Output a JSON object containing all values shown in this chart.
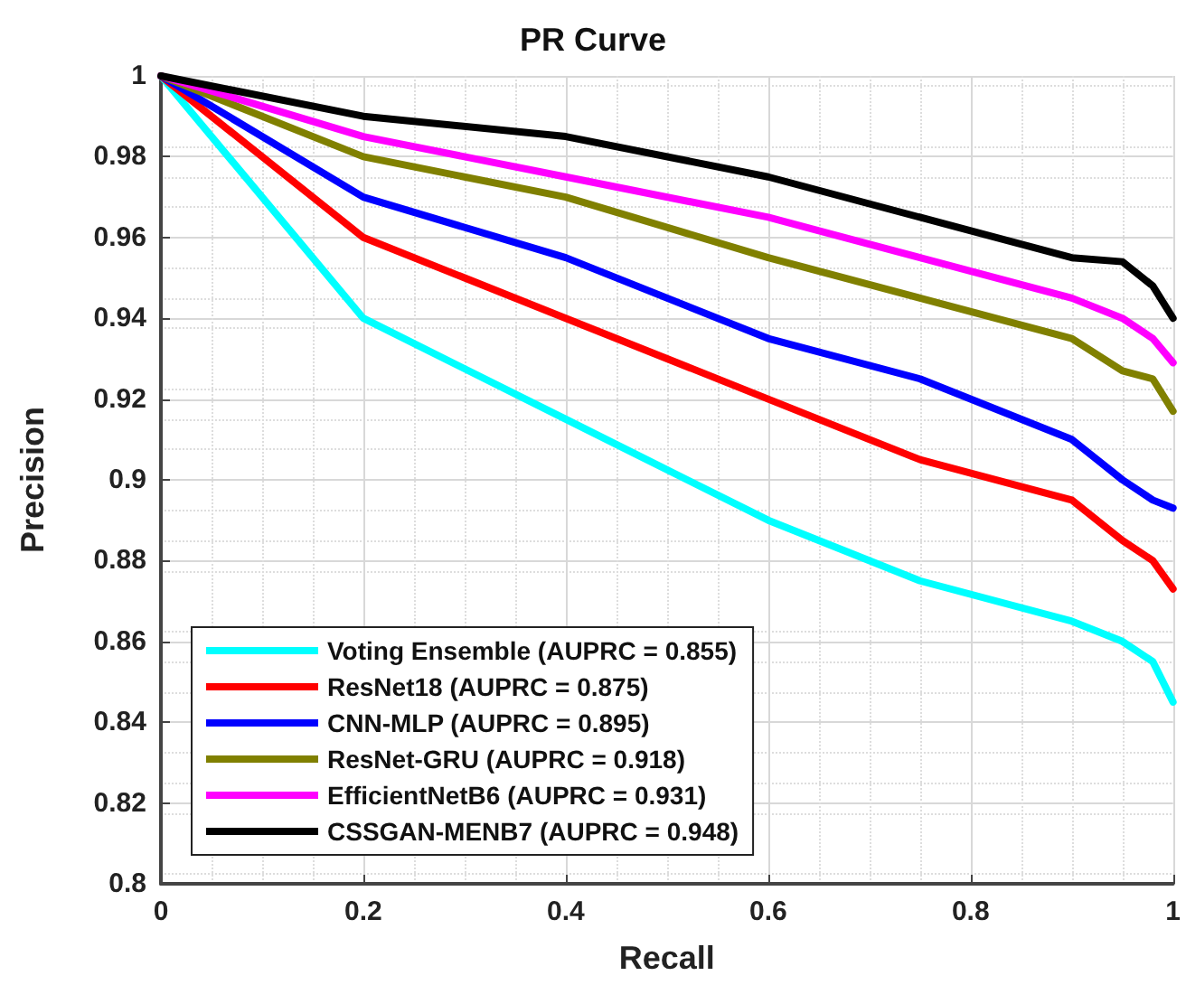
{
  "chart_data": {
    "type": "line",
    "title": "PR Curve",
    "xlabel": "Recall",
    "ylabel": "Precision",
    "xlim": [
      0,
      1
    ],
    "xticks": [
      0,
      0.2,
      0.4,
      0.6,
      0.8,
      1
    ],
    "ylim": [
      0.8,
      1
    ],
    "yticks": [
      0.8,
      0.82,
      0.84,
      0.86,
      0.88,
      0.9,
      0.92,
      0.94,
      0.96,
      0.98,
      1
    ],
    "grid": true,
    "legend": "bottom left",
    "marker": "none",
    "line_style": "solid",
    "x": [
      0,
      0.2,
      0.4,
      0.6,
      0.75,
      0.9,
      0.95,
      0.98,
      1
    ],
    "series": [
      {
        "name": "Voting Ensemble (AUPRC = 0.855)",
        "color": "#00ffff",
        "values": [
          1,
          0.94,
          0.915,
          0.89,
          0.875,
          0.865,
          0.86,
          0.855,
          0.845
        ]
      },
      {
        "name": "ResNet18 (AUPRC = 0.875)",
        "color": "#ff0000",
        "values": [
          1,
          0.96,
          0.94,
          0.92,
          0.905,
          0.895,
          0.885,
          0.88,
          0.873
        ]
      },
      {
        "name": "CNN-MLP (AUPRC = 0.895)",
        "color": "#0000ff",
        "values": [
          1,
          0.97,
          0.955,
          0.935,
          0.925,
          0.91,
          0.9,
          0.895,
          0.893
        ]
      },
      {
        "name": "ResNet-GRU (AUPRC = 0.918)",
        "color": "#808000",
        "values": [
          1,
          0.98,
          0.97,
          0.955,
          0.945,
          0.935,
          0.927,
          0.925,
          0.917
        ]
      },
      {
        "name": "EfficientNetB6 (AUPRC = 0.931)",
        "color": "#ff00ff",
        "values": [
          1,
          0.985,
          0.975,
          0.965,
          0.955,
          0.945,
          0.94,
          0.935,
          0.929
        ]
      },
      {
        "name": "CSSGAN-MENB7 (AUPRC = 0.948)",
        "color": "#000000",
        "values": [
          1,
          0.99,
          0.985,
          0.975,
          0.965,
          0.955,
          0.954,
          0.948,
          0.94
        ]
      }
    ]
  }
}
